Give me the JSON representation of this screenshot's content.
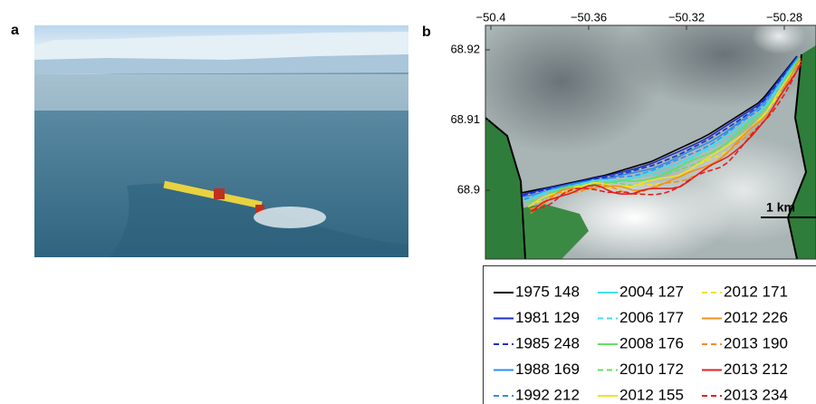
{
  "panels": [
    {
      "label": "a"
    },
    {
      "label": "b",
      "xticks": [
        {
          "value": -50.4,
          "label": "−50.4"
        },
        {
          "value": -50.36,
          "label": "−50.36"
        },
        {
          "value": -50.32,
          "label": "−50.32"
        },
        {
          "value": -50.28,
          "label": "−50.28"
        }
      ],
      "yticks": [
        68.92,
        68.91,
        68.9
      ],
      "scale_bar": "1 km",
      "legend": [
        {
          "label": "1975 148",
          "color": "#000000",
          "dashed": false
        },
        {
          "label": "1981 129",
          "color": "#1c2fc0",
          "dashed": false
        },
        {
          "label": "1985 248",
          "color": "#1c2fc0",
          "dashed": true
        },
        {
          "label": "1988 169",
          "color": "#2b8df0",
          "dashed": false
        },
        {
          "label": "1992 212",
          "color": "#2b8df0",
          "dashed": true
        },
        {
          "label": "2004 127",
          "color": "#45dde8",
          "dashed": false
        },
        {
          "label": "2006 177",
          "color": "#45dde8",
          "dashed": true
        },
        {
          "label": "2008 176",
          "color": "#66dd66",
          "dashed": false
        },
        {
          "label": "2010 172",
          "color": "#66dd66",
          "dashed": true
        },
        {
          "label": "2012 155",
          "color": "#f2e21c",
          "dashed": false
        },
        {
          "label": "2012 171",
          "color": "#f2e21c",
          "dashed": true
        },
        {
          "label": "2012 226",
          "color": "#f09020",
          "dashed": false
        },
        {
          "label": "2013 190",
          "color": "#f09020",
          "dashed": true
        },
        {
          "label": "2013 212",
          "color": "#e02020",
          "dashed": false
        },
        {
          "label": "2013 234",
          "color": "#e02020",
          "dashed": true
        }
      ]
    }
  ]
}
